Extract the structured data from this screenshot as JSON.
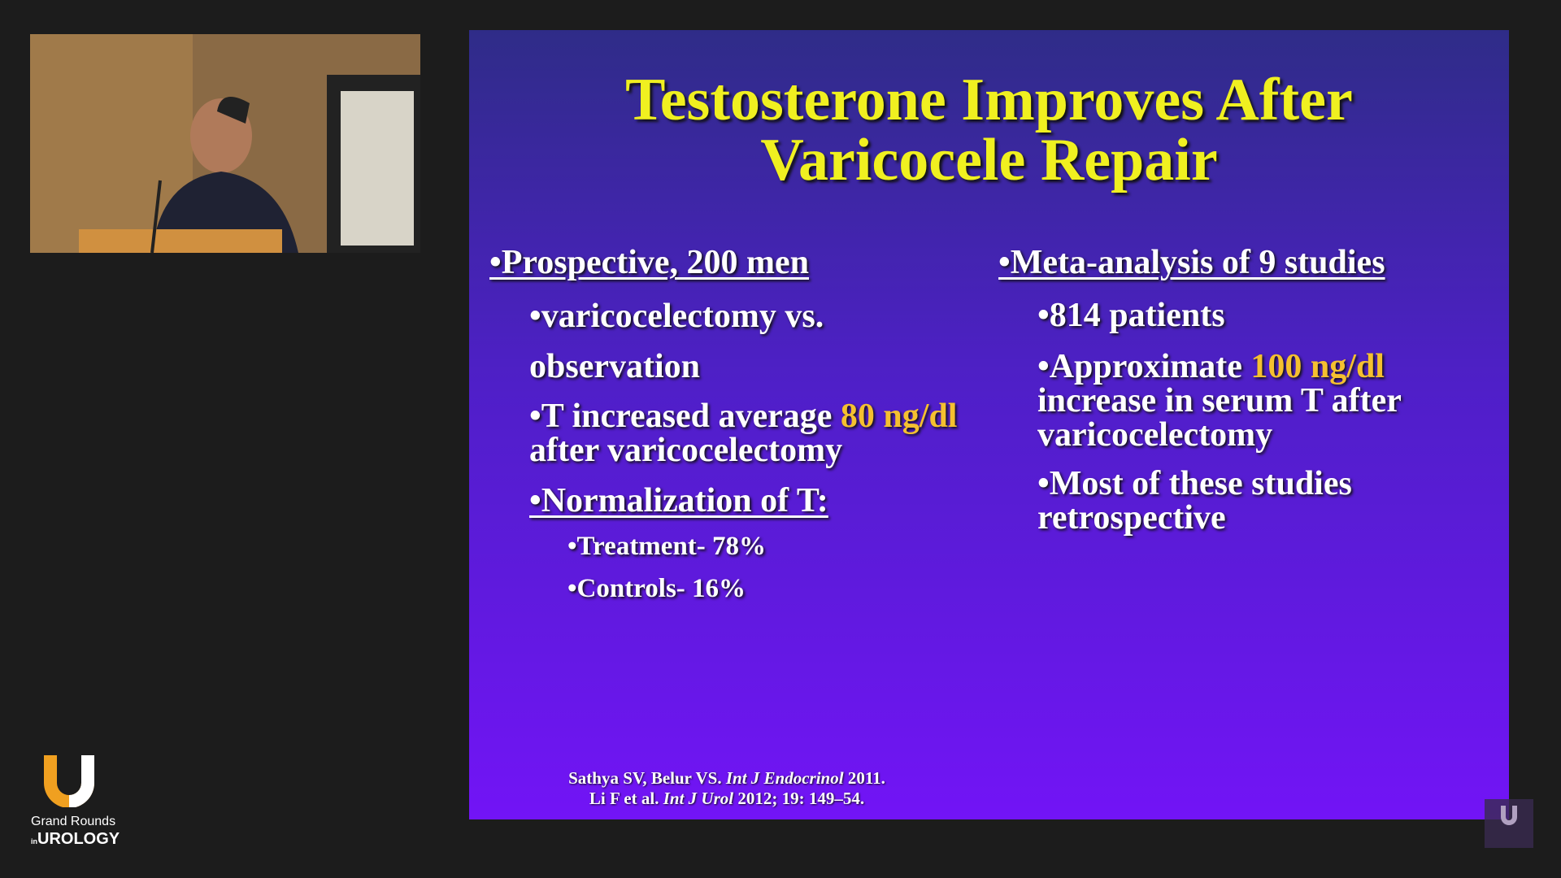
{
  "slide": {
    "title": [
      "Testosterone Improves After",
      "Varicocele Repair"
    ],
    "left": {
      "heading": "•Prospective, 200 men",
      "items": [
        [
          "•varicocelectomy vs."
        ],
        [
          "observation"
        ],
        [
          "•T increased average ",
          "80 ng/dl",
          "after varicocelectomy"
        ],
        [
          "•Normalization of T:"
        ]
      ],
      "subitems": [
        "•Treatment- 78%",
        "•Controls- 16%"
      ]
    },
    "right": {
      "heading": "•Meta-analysis of 9 studies",
      "items": [
        [
          "•814 patients"
        ],
        [
          "•Approximate ",
          "100 ng/dl",
          "increase in serum T after",
          "varicocelectomy"
        ],
        [
          "•Most of these studies",
          "retrospective"
        ]
      ]
    },
    "citations": [
      [
        "Sathya SV, Belur VS. ",
        "Int J Endocrinol",
        " 2011."
      ],
      [
        "Li F et al. ",
        "Int J Urol",
        " 2012; 19: 149–54."
      ]
    ]
  },
  "logo": {
    "line1": "Grand Rounds",
    "prefix": "in",
    "line2": "UROLOGY"
  }
}
